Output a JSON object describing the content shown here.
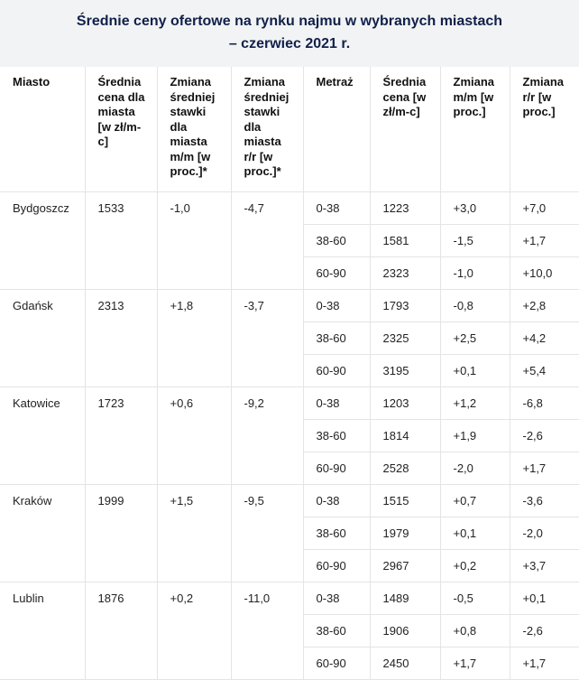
{
  "caption": {
    "line1": "Średnie ceny ofertowe na rynku najmu w wybranych miastach",
    "line2": "– czerwiec 2021 r."
  },
  "headers": [
    "Miasto",
    "Średnia cena dla miasta [w zł/m-c]",
    "Zmiana średniej stawki dla miasta m/m [w proc.]*",
    "Zmiana średniej stawki dla miasta r/r [w proc.]*",
    "Metraż",
    "Średnia cena [w zł/m-c]",
    "Zmiana m/m [w proc.]",
    "Zmiana r/r [w proc.]"
  ],
  "cities": [
    {
      "name": "Bydgoszcz",
      "avg_price": "1533",
      "change_mm": "-1,0",
      "change_rr": "-4,7",
      "rows": [
        {
          "size": "0-38",
          "price": "1223",
          "mm": "+3,0",
          "rr": "+7,0"
        },
        {
          "size": "38-60",
          "price": "1581",
          "mm": "-1,5",
          "rr": "+1,7"
        },
        {
          "size": "60-90",
          "price": "2323",
          "mm": "-1,0",
          "rr": "+10,0"
        }
      ]
    },
    {
      "name": "Gdańsk",
      "avg_price": "2313",
      "change_mm": "+1,8",
      "change_rr": "-3,7",
      "rows": [
        {
          "size": "0-38",
          "price": "1793",
          "mm": "-0,8",
          "rr": "+2,8"
        },
        {
          "size": "38-60",
          "price": "2325",
          "mm": "+2,5",
          "rr": "+4,2"
        },
        {
          "size": "60-90",
          "price": "3195",
          "mm": "+0,1",
          "rr": "+5,4"
        }
      ]
    },
    {
      "name": "Katowice",
      "avg_price": "1723",
      "change_mm": "+0,6",
      "change_rr": "-9,2",
      "rows": [
        {
          "size": "0-38",
          "price": "1203",
          "mm": "+1,2",
          "rr": "-6,8"
        },
        {
          "size": "38-60",
          "price": "1814",
          "mm": "+1,9",
          "rr": "-2,6"
        },
        {
          "size": "60-90",
          "price": "2528",
          "mm": "-2,0",
          "rr": "+1,7"
        }
      ]
    },
    {
      "name": "Kraków",
      "avg_price": "1999",
      "change_mm": "+1,5",
      "change_rr": "-9,5",
      "rows": [
        {
          "size": "0-38",
          "price": "1515",
          "mm": "+0,7",
          "rr": "-3,6"
        },
        {
          "size": "38-60",
          "price": "1979",
          "mm": "+0,1",
          "rr": "-2,0"
        },
        {
          "size": "60-90",
          "price": "2967",
          "mm": "+0,2",
          "rr": "+3,7"
        }
      ]
    },
    {
      "name": "Lublin",
      "avg_price": "1876",
      "change_mm": "+0,2",
      "change_rr": "-11,0",
      "rows": [
        {
          "size": "0-38",
          "price": "1489",
          "mm": "-0,5",
          "rr": "+0,1"
        },
        {
          "size": "38-60",
          "price": "1906",
          "mm": "+0,8",
          "rr": "-2,6"
        },
        {
          "size": "60-90",
          "price": "2450",
          "mm": "+1,7",
          "rr": "+1,7"
        }
      ]
    }
  ]
}
